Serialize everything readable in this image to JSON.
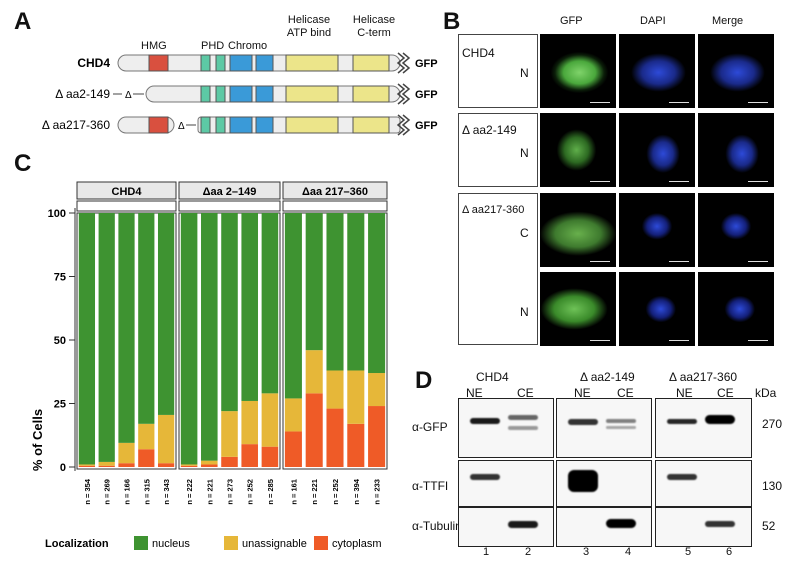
{
  "panels": {
    "a": "A",
    "b": "B",
    "c": "C",
    "d": "D"
  },
  "panelA": {
    "domains": {
      "hmg": "HMG",
      "phd": "PHD",
      "chromo": "Chromo",
      "helicase_atp": [
        "Helicase",
        "ATP bind"
      ],
      "helicase_cterm": [
        "Helicase",
        "C-term"
      ]
    },
    "constructs": [
      {
        "name": "CHD4",
        "deletion": "none"
      },
      {
        "name": "Δ aa2-149",
        "deletion": "HMG"
      },
      {
        "name": "Δ aa217-360",
        "deletion": "PHD-proximal"
      }
    ],
    "gfp_label": "GFP",
    "delta": "Δ",
    "colors": {
      "hmg": "#d9503f",
      "phd": "#5dc9a5",
      "chromo": "#3a9ad8",
      "helicase": "#ece58a",
      "backbone": "#eeeeee"
    }
  },
  "panelB": {
    "columns": [
      "GFP",
      "DAPI",
      "Merge"
    ],
    "rows": [
      {
        "construct": "CHD4",
        "localization": "N"
      },
      {
        "construct": "Δ aa2-149",
        "localization": "N"
      },
      {
        "construct": "Δ aa217-360",
        "localization": "C"
      },
      {
        "construct": "",
        "localization": "N"
      }
    ]
  },
  "chart_data": {
    "type": "bar",
    "stacked": true,
    "ylabel": "% of Cells",
    "ylim": [
      0,
      100
    ],
    "yticks": [
      0,
      25,
      50,
      75,
      100
    ],
    "facets": [
      {
        "name": "CHD4",
        "n_labels": [
          "n = 354",
          "n = 269",
          "n = 166",
          "n = 315",
          "n = 343"
        ],
        "cytoplasm": [
          0.5,
          0.5,
          1.5,
          7,
          1.5
        ],
        "unassignable": [
          0.5,
          1.5,
          8,
          10,
          19
        ],
        "nucleus": [
          99,
          98,
          90.5,
          83,
          79.5
        ]
      },
      {
        "name": "Δaa 2–149",
        "n_labels": [
          "n = 222",
          "n = 221",
          "n = 273",
          "n = 252",
          "n = 285"
        ],
        "cytoplasm": [
          0.5,
          1,
          4,
          9,
          8
        ],
        "unassignable": [
          0.5,
          1.5,
          18,
          17,
          21
        ],
        "nucleus": [
          99,
          97.5,
          78,
          74,
          71
        ]
      },
      {
        "name": "Δaa 217–360",
        "n_labels": [
          "n = 161",
          "n = 221",
          "n = 252",
          "n = 394",
          "n = 233"
        ],
        "cytoplasm": [
          14,
          29,
          23,
          17,
          24
        ],
        "unassignable": [
          13,
          17,
          15,
          21,
          13
        ],
        "nucleus": [
          73,
          54,
          62,
          62,
          63
        ]
      }
    ],
    "legend": {
      "title": "Localization",
      "entries": [
        "nucleus",
        "unassignable",
        "cytoplasm"
      ],
      "placement": "bottom"
    },
    "colors": {
      "nucleus": "#3e9331",
      "unassignable": "#e6b739",
      "cytoplasm": "#ef5b27"
    }
  },
  "panelD": {
    "groups": [
      {
        "name": "CHD4",
        "lanes": [
          "NE",
          "CE"
        ]
      },
      {
        "name": "Δ aa2-149",
        "lanes": [
          "NE",
          "CE"
        ]
      },
      {
        "name": "Δ aa217-360",
        "lanes": [
          "NE",
          "CE"
        ]
      }
    ],
    "rows": [
      "α-GFP",
      "α-TTFI",
      "α-Tubulin"
    ],
    "kda_title": "kDa",
    "kda": [
      "270",
      "130",
      "52"
    ],
    "lane_numbers": [
      "1",
      "2",
      "3",
      "4",
      "5",
      "6"
    ]
  }
}
